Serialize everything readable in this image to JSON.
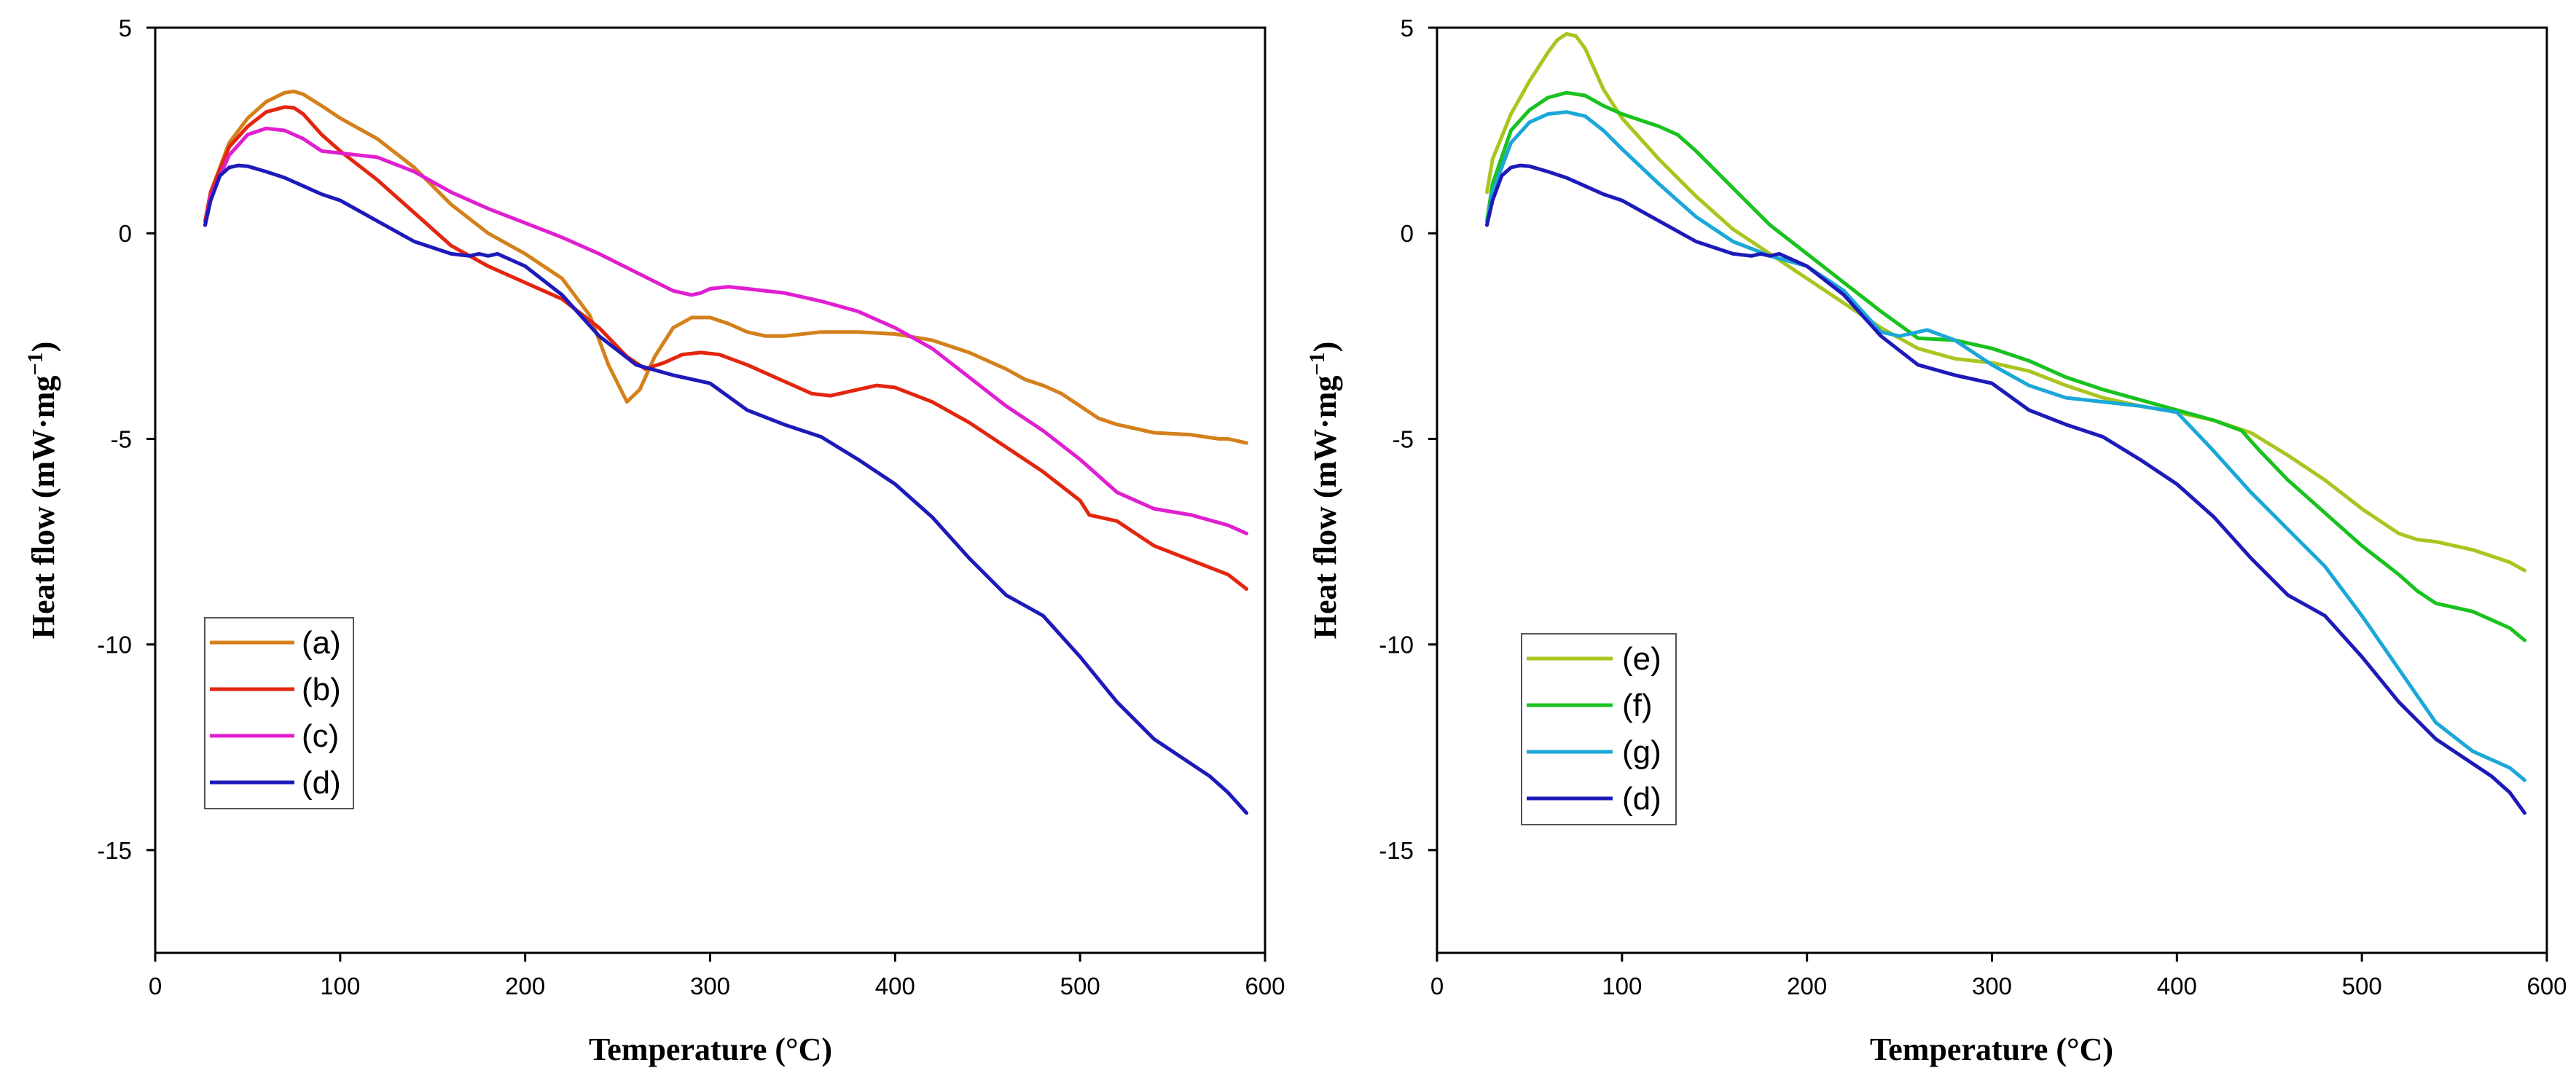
{
  "chart_data": [
    {
      "type": "line",
      "title": "",
      "xlabel": "Temperature (°C)",
      "ylabel_main": "Heat flow (mW·mg",
      "ylabel_sup": "−1",
      "ylabel_close": ")",
      "xlim": [
        0,
        600
      ],
      "ylim": [
        -17.5,
        5
      ],
      "xticks": [
        0,
        100,
        200,
        300,
        400,
        500,
        600
      ],
      "xtick_labels": [
        "0",
        "100",
        "200",
        "300",
        "400",
        "500",
        "600"
      ],
      "yticks": [
        5,
        0,
        -5,
        -10,
        -15
      ],
      "ytick_labels": [
        "5",
        "0",
        "-5",
        "-10",
        "-15"
      ],
      "legend_position": "bottom-left",
      "series": [
        {
          "name": "(a)",
          "color": "#D4801B",
          "x": [
            27,
            30,
            40,
            50,
            60,
            70,
            75,
            80,
            90,
            100,
            120,
            140,
            160,
            180,
            200,
            220,
            235,
            245,
            255,
            262,
            270,
            280,
            290,
            300,
            310,
            320,
            330,
            340,
            360,
            380,
            400,
            420,
            440,
            460,
            470,
            480,
            490,
            500,
            510,
            520,
            540,
            560,
            575,
            580,
            590
          ],
          "y": [
            0.3,
            1.0,
            2.2,
            2.8,
            3.2,
            3.42,
            3.45,
            3.38,
            3.1,
            2.8,
            2.3,
            1.6,
            0.7,
            0.0,
            -0.5,
            -1.1,
            -2.0,
            -3.2,
            -4.1,
            -3.8,
            -3.0,
            -2.3,
            -2.05,
            -2.05,
            -2.2,
            -2.4,
            -2.5,
            -2.5,
            -2.4,
            -2.4,
            -2.45,
            -2.6,
            -2.9,
            -3.3,
            -3.55,
            -3.7,
            -3.9,
            -4.2,
            -4.5,
            -4.65,
            -4.85,
            -4.9,
            -5.0,
            -5.0,
            -5.1
          ]
        },
        {
          "name": "(b)",
          "color": "#E3260F",
          "x": [
            27,
            30,
            40,
            50,
            60,
            70,
            75,
            80,
            90,
            100,
            120,
            140,
            160,
            180,
            200,
            220,
            240,
            255,
            265,
            275,
            285,
            295,
            305,
            320,
            340,
            355,
            365,
            380,
            390,
            400,
            420,
            440,
            460,
            480,
            500,
            505,
            510,
            520,
            530,
            540,
            560,
            580,
            590
          ],
          "y": [
            0.3,
            1.0,
            2.1,
            2.6,
            2.95,
            3.07,
            3.05,
            2.9,
            2.4,
            2.0,
            1.3,
            0.5,
            -0.3,
            -0.8,
            -1.2,
            -1.6,
            -2.3,
            -3.0,
            -3.3,
            -3.15,
            -2.95,
            -2.9,
            -2.95,
            -3.2,
            -3.6,
            -3.9,
            -3.95,
            -3.8,
            -3.7,
            -3.75,
            -4.1,
            -4.6,
            -5.2,
            -5.8,
            -6.5,
            -6.85,
            -6.9,
            -7.0,
            -7.3,
            -7.6,
            -7.95,
            -8.3,
            -8.65
          ]
        },
        {
          "name": "(c)",
          "color": "#E01FD0",
          "x": [
            27,
            30,
            40,
            50,
            60,
            70,
            80,
            90,
            100,
            120,
            140,
            160,
            180,
            200,
            220,
            240,
            260,
            280,
            290,
            295,
            300,
            310,
            320,
            340,
            360,
            380,
            400,
            420,
            440,
            460,
            480,
            500,
            520,
            540,
            560,
            580,
            590
          ],
          "y": [
            0.2,
            0.9,
            1.9,
            2.4,
            2.55,
            2.5,
            2.3,
            2.0,
            1.95,
            1.85,
            1.5,
            1.0,
            0.6,
            0.25,
            -0.1,
            -0.5,
            -0.95,
            -1.4,
            -1.5,
            -1.45,
            -1.35,
            -1.3,
            -1.35,
            -1.45,
            -1.65,
            -1.9,
            -2.3,
            -2.8,
            -3.5,
            -4.2,
            -4.8,
            -5.5,
            -6.3,
            -6.7,
            -6.85,
            -7.1,
            -7.3
          ]
        },
        {
          "name": "(d)",
          "color": "#1E1AB9",
          "x": [
            27,
            30,
            35,
            40,
            45,
            50,
            60,
            70,
            80,
            90,
            100,
            120,
            140,
            160,
            170,
            175,
            180,
            185,
            200,
            220,
            240,
            260,
            280,
            300,
            320,
            340,
            360,
            380,
            400,
            420,
            440,
            460,
            470,
            480,
            500,
            520,
            540,
            560,
            570,
            580,
            590
          ],
          "y": [
            0.2,
            0.8,
            1.4,
            1.6,
            1.65,
            1.63,
            1.5,
            1.35,
            1.15,
            0.95,
            0.8,
            0.3,
            -0.2,
            -0.5,
            -0.55,
            -0.5,
            -0.55,
            -0.5,
            -0.8,
            -1.5,
            -2.5,
            -3.2,
            -3.45,
            -3.65,
            -4.3,
            -4.65,
            -4.95,
            -5.5,
            -6.1,
            -6.9,
            -7.9,
            -8.8,
            -9.05,
            -9.3,
            -10.3,
            -11.4,
            -12.3,
            -12.9,
            -13.2,
            -13.6,
            -14.1
          ]
        }
      ]
    },
    {
      "type": "line",
      "title": "",
      "xlabel": "Temperature (°C)",
      "ylabel_main": "Heat flow (mW·mg",
      "ylabel_sup": "−1",
      "ylabel_close": ")",
      "xlim": [
        0,
        600
      ],
      "ylim": [
        -17.5,
        5
      ],
      "xticks": [
        0,
        100,
        200,
        300,
        400,
        500,
        600
      ],
      "xtick_labels": [
        "0",
        "100",
        "200",
        "300",
        "400",
        "500",
        "600"
      ],
      "yticks": [
        5,
        0,
        -5,
        -10,
        -15
      ],
      "ytick_labels": [
        "5",
        "0",
        "-5",
        "-10",
        "-15"
      ],
      "legend_position": "bottom-left",
      "series": [
        {
          "name": "(e)",
          "color": "#A9C51F",
          "x": [
            27,
            30,
            40,
            50,
            60,
            65,
            70,
            75,
            80,
            90,
            100,
            120,
            140,
            160,
            180,
            200,
            220,
            240,
            260,
            280,
            300,
            320,
            340,
            360,
            380,
            400,
            420,
            440,
            460,
            480,
            500,
            520,
            530,
            540,
            560,
            580,
            588
          ],
          "y": [
            1.0,
            1.8,
            2.9,
            3.7,
            4.4,
            4.7,
            4.85,
            4.8,
            4.5,
            3.5,
            2.8,
            1.8,
            0.9,
            0.1,
            -0.5,
            -1.1,
            -1.7,
            -2.3,
            -2.8,
            -3.05,
            -3.15,
            -3.35,
            -3.7,
            -4.0,
            -4.2,
            -4.35,
            -4.55,
            -4.85,
            -5.4,
            -6.0,
            -6.7,
            -7.3,
            -7.45,
            -7.5,
            -7.7,
            -8.0,
            -8.2
          ]
        },
        {
          "name": "(f)",
          "color": "#19C21F",
          "x": [
            27,
            30,
            40,
            50,
            60,
            70,
            80,
            90,
            100,
            120,
            130,
            140,
            160,
            180,
            200,
            220,
            240,
            260,
            280,
            300,
            320,
            340,
            360,
            380,
            400,
            420,
            435,
            445,
            460,
            480,
            500,
            520,
            530,
            540,
            560,
            580,
            588
          ],
          "y": [
            0.3,
            1.2,
            2.5,
            3.0,
            3.3,
            3.42,
            3.35,
            3.1,
            2.9,
            2.6,
            2.4,
            2.0,
            1.1,
            0.2,
            -0.5,
            -1.2,
            -1.9,
            -2.55,
            -2.6,
            -2.8,
            -3.1,
            -3.5,
            -3.8,
            -4.05,
            -4.3,
            -4.55,
            -4.8,
            -5.3,
            -6.0,
            -6.8,
            -7.6,
            -8.3,
            -8.7,
            -9.0,
            -9.2,
            -9.6,
            -9.9
          ]
        },
        {
          "name": "(g)",
          "color": "#1BA7D8",
          "x": [
            27,
            30,
            40,
            50,
            60,
            70,
            80,
            90,
            100,
            120,
            140,
            160,
            180,
            200,
            220,
            240,
            250,
            265,
            280,
            300,
            320,
            340,
            360,
            380,
            400,
            420,
            440,
            460,
            480,
            500,
            520,
            540,
            560,
            580,
            588
          ],
          "y": [
            0.2,
            1.0,
            2.2,
            2.7,
            2.9,
            2.95,
            2.85,
            2.5,
            2.05,
            1.2,
            0.4,
            -0.2,
            -0.55,
            -0.8,
            -1.4,
            -2.4,
            -2.5,
            -2.35,
            -2.6,
            -3.2,
            -3.7,
            -4.0,
            -4.1,
            -4.2,
            -4.35,
            -5.3,
            -6.3,
            -7.2,
            -8.1,
            -9.3,
            -10.6,
            -11.9,
            -12.6,
            -13.0,
            -13.3
          ]
        },
        {
          "name": "(d)",
          "color": "#1E1AB9",
          "x": [
            27,
            30,
            35,
            40,
            45,
            50,
            60,
            70,
            80,
            90,
            100,
            120,
            140,
            160,
            170,
            175,
            180,
            185,
            200,
            220,
            240,
            260,
            280,
            300,
            320,
            340,
            360,
            380,
            400,
            420,
            440,
            460,
            470,
            480,
            500,
            520,
            540,
            560,
            570,
            580,
            588
          ],
          "y": [
            0.2,
            0.8,
            1.4,
            1.6,
            1.65,
            1.63,
            1.5,
            1.35,
            1.15,
            0.95,
            0.8,
            0.3,
            -0.2,
            -0.5,
            -0.55,
            -0.5,
            -0.55,
            -0.5,
            -0.8,
            -1.5,
            -2.5,
            -3.2,
            -3.45,
            -3.65,
            -4.3,
            -4.65,
            -4.95,
            -5.5,
            -6.1,
            -6.9,
            -7.9,
            -8.8,
            -9.05,
            -9.3,
            -10.3,
            -11.4,
            -12.3,
            -12.9,
            -13.2,
            -13.6,
            -14.1
          ]
        }
      ]
    }
  ]
}
